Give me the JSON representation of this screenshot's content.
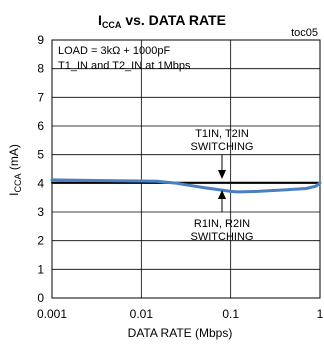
{
  "chart_data": {
    "type": "line",
    "title": "I_CCA vs. DATA RATE",
    "title_main": "I",
    "title_sub": "CCA",
    "title_rest": " vs. DATA RATE",
    "code": "toc05",
    "xlabel": "DATA RATE (Mbps)",
    "ylabel_main": "I",
    "ylabel_sub": "CCA",
    "ylabel_rest": " (mA)",
    "x_scale": "log",
    "xlim": [
      0.001,
      1
    ],
    "ylim": [
      0,
      9
    ],
    "x_ticks": [
      0.001,
      0.01,
      0.1,
      1
    ],
    "x_tick_labels": [
      "0.001",
      "0.01",
      "0.1",
      "1"
    ],
    "y_ticks": [
      0,
      1,
      2,
      3,
      4,
      5,
      6,
      7,
      8,
      9
    ],
    "y_tick_labels": [
      "0",
      "1",
      "2",
      "3",
      "4",
      "5",
      "6",
      "7",
      "8",
      "9"
    ],
    "grid": true,
    "conditions": [
      "LOAD = 3kΩ + 1000pF",
      "T1_IN and T2_IN at 1Mbps"
    ],
    "series": [
      {
        "color": "#000000",
        "x": [
          0.001,
          0.01,
          0.1,
          1
        ],
        "y": [
          4.02,
          4.02,
          4.02,
          4.02
        ]
      },
      {
        "color": "#4a7fc1",
        "x": [
          0.001,
          0.003,
          0.01,
          0.015,
          0.025,
          0.05,
          0.1,
          0.12,
          0.2,
          0.4,
          0.7,
          0.9,
          1
        ],
        "y": [
          4.12,
          4.1,
          4.08,
          4.07,
          4.0,
          3.85,
          3.72,
          3.7,
          3.72,
          3.77,
          3.82,
          3.9,
          4.02
        ]
      }
    ],
    "annotations": [
      {
        "lines": [
          "T1IN, T2IN",
          "SWITCHING"
        ],
        "x": 0.12,
        "y": 4.02
      },
      {
        "lines": [
          "R1IN, R2IN",
          "SWITCHING"
        ],
        "x": 0.12,
        "y": 3.7
      }
    ]
  }
}
